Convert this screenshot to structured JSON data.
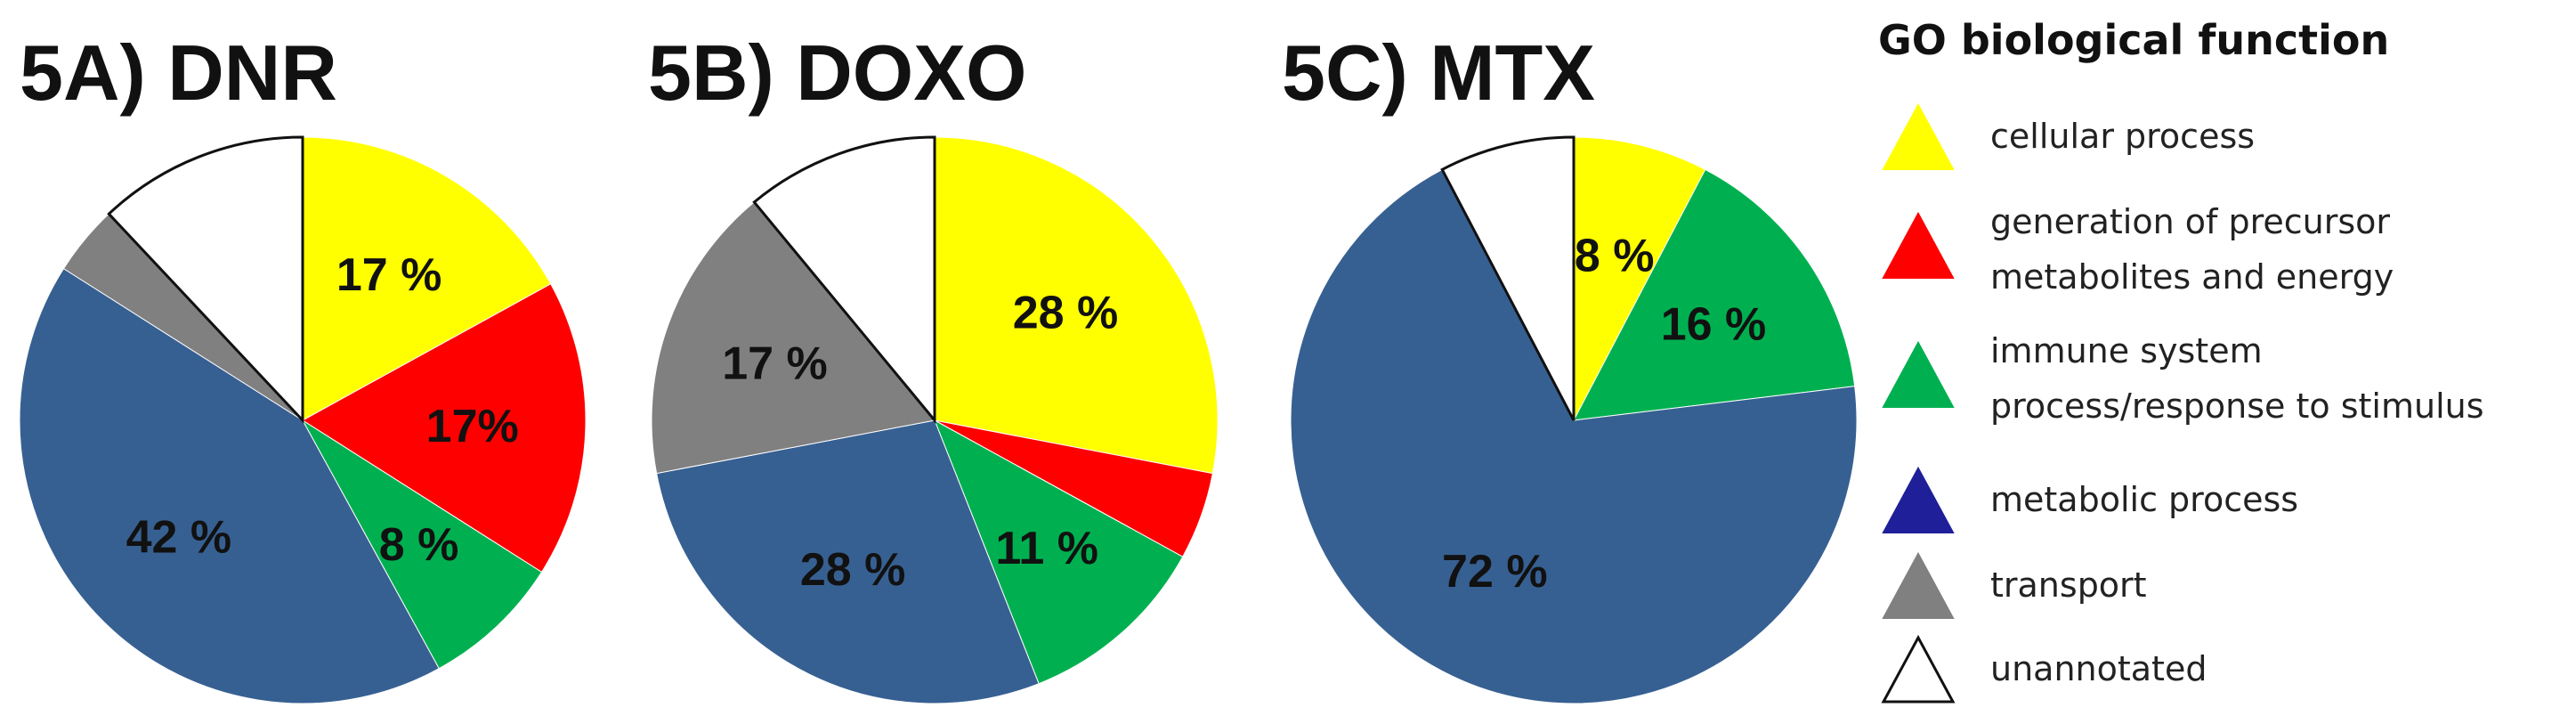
{
  "chart_data": [
    {
      "type": "pie",
      "title": "5A) DNR",
      "slices": [
        {
          "name": "cellular process",
          "value": 17,
          "label": "17 %",
          "color": "#FFFF00"
        },
        {
          "name": "generation of precursor metabolites and energy",
          "value": 17,
          "label": "17%",
          "color": "#FF0000"
        },
        {
          "name": "immune system process/response to stimulus",
          "value": 8,
          "label": "8 %",
          "color": "#00B050"
        },
        {
          "name": "metabolic process",
          "value": 42,
          "label": "42 %",
          "color": "#376092"
        },
        {
          "name": "transport",
          "value": 4,
          "label": "",
          "color": "#808080"
        },
        {
          "name": "unannotated",
          "value": 12,
          "label": "",
          "color": "#FFFFFF"
        }
      ]
    },
    {
      "type": "pie",
      "title": "5B) DOXO",
      "slices": [
        {
          "name": "cellular process",
          "value": 28,
          "label": "28 %",
          "color": "#FFFF00"
        },
        {
          "name": "generation of precursor metabolites and energy",
          "value": 5,
          "label": "",
          "color": "#FF0000"
        },
        {
          "name": "immune system process/response to stimulus",
          "value": 11,
          "label": "11 %",
          "color": "#00B050"
        },
        {
          "name": "metabolic process",
          "value": 28,
          "label": "28 %",
          "color": "#376092"
        },
        {
          "name": "transport",
          "value": 17,
          "label": "17 %",
          "color": "#808080"
        },
        {
          "name": "unannotated",
          "value": 11,
          "label": "",
          "color": "#FFFFFF"
        }
      ]
    },
    {
      "type": "pie",
      "title": "5C) MTX",
      "slices": [
        {
          "name": "cellular process",
          "value": 8,
          "label": "8 %",
          "color": "#FFFF00"
        },
        {
          "name": "immune system process/response to stimulus",
          "value": 16,
          "label": "16 %",
          "color": "#00B050"
        },
        {
          "name": "metabolic process",
          "value": 72,
          "label": "72 %",
          "color": "#376092"
        },
        {
          "name": "unannotated",
          "value": 8,
          "label": "",
          "color": "#FFFFFF"
        }
      ]
    }
  ],
  "legend": {
    "title": "GO biological function",
    "placement": "right",
    "items": [
      {
        "label": "cellular process",
        "color": "#FFFF00"
      },
      {
        "label": "generation of precursor\nmetabolites and energy",
        "color": "#FF0000"
      },
      {
        "label": "immune system\nprocess/response to stimulus",
        "color": "#00B050"
      },
      {
        "label": "metabolic process",
        "color": "#1F1F99"
      },
      {
        "label": "transport",
        "color": "#808080"
      },
      {
        "label": "unannotated",
        "color": "#FFFFFF"
      }
    ]
  }
}
